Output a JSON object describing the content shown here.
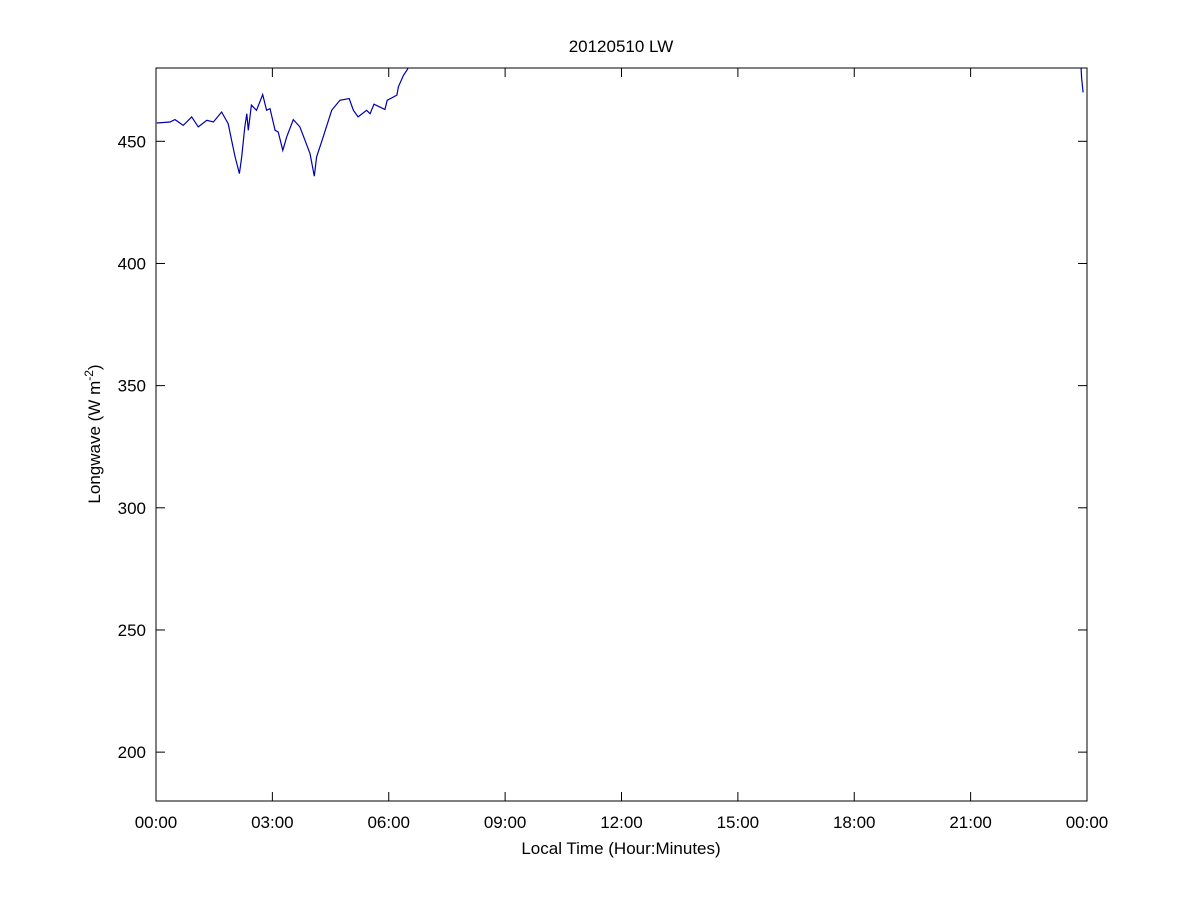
{
  "chart_data": {
    "type": "line",
    "title": "20120510 LW",
    "xlabel": "Local Time (Hour:Minutes)",
    "ylabel_main": "Longwave (W m",
    "ylabel_sup": "-2",
    "ylabel_close": ")",
    "xlim_hours": [
      0,
      24
    ],
    "ylim": [
      180,
      480
    ],
    "x_ticks": [
      0,
      3,
      6,
      9,
      12,
      15,
      18,
      21,
      24
    ],
    "x_tick_labels": [
      "00:00",
      "03:00",
      "06:00",
      "09:00",
      "12:00",
      "15:00",
      "18:00",
      "21:00",
      "00:00"
    ],
    "y_ticks": [
      200,
      250,
      300,
      350,
      400,
      450
    ],
    "y_tick_labels": [
      "200",
      "250",
      "300",
      "350",
      "400",
      "450"
    ],
    "grid": false,
    "line_color": "#0000aa",
    "series": [
      {
        "x_hours": [
          0.02,
          0.36,
          0.49,
          0.7,
          0.92,
          1.09,
          1.31,
          1.48,
          1.69,
          1.86,
          1.95,
          2.04,
          2.15,
          2.21,
          2.29,
          2.34,
          2.38,
          2.46,
          2.59,
          2.75,
          2.85,
          2.94,
          3.07,
          3.15,
          3.27,
          3.37,
          3.54,
          3.71,
          3.84,
          3.97,
          4.08,
          4.14,
          4.31,
          4.53,
          4.74,
          4.98,
          5.09,
          5.21,
          5.43,
          5.52,
          5.62,
          5.9,
          5.96,
          6.21,
          6.25,
          6.38,
          6.48,
          6.55
        ],
        "values": [
          457.5,
          457.9,
          458.9,
          456.5,
          460,
          455.9,
          458.6,
          457.9,
          462,
          457.2,
          450.4,
          443.6,
          436.8,
          443.6,
          455.9,
          461.3,
          454.5,
          464.8,
          462.7,
          469.1,
          462.7,
          463.4,
          454.5,
          453.8,
          446.3,
          451.8,
          458.9,
          455.9,
          450.4,
          445,
          435.7,
          443.6,
          451.8,
          462.7,
          466.8,
          467.5,
          462.7,
          460,
          462.7,
          461.3,
          465.2,
          463,
          466.8,
          468.9,
          472.3,
          477,
          479.4,
          482
        ]
      },
      {
        "x_hours": [
          23.84,
          23.86,
          23.9
        ],
        "values": [
          482,
          476,
          470
        ]
      }
    ]
  }
}
